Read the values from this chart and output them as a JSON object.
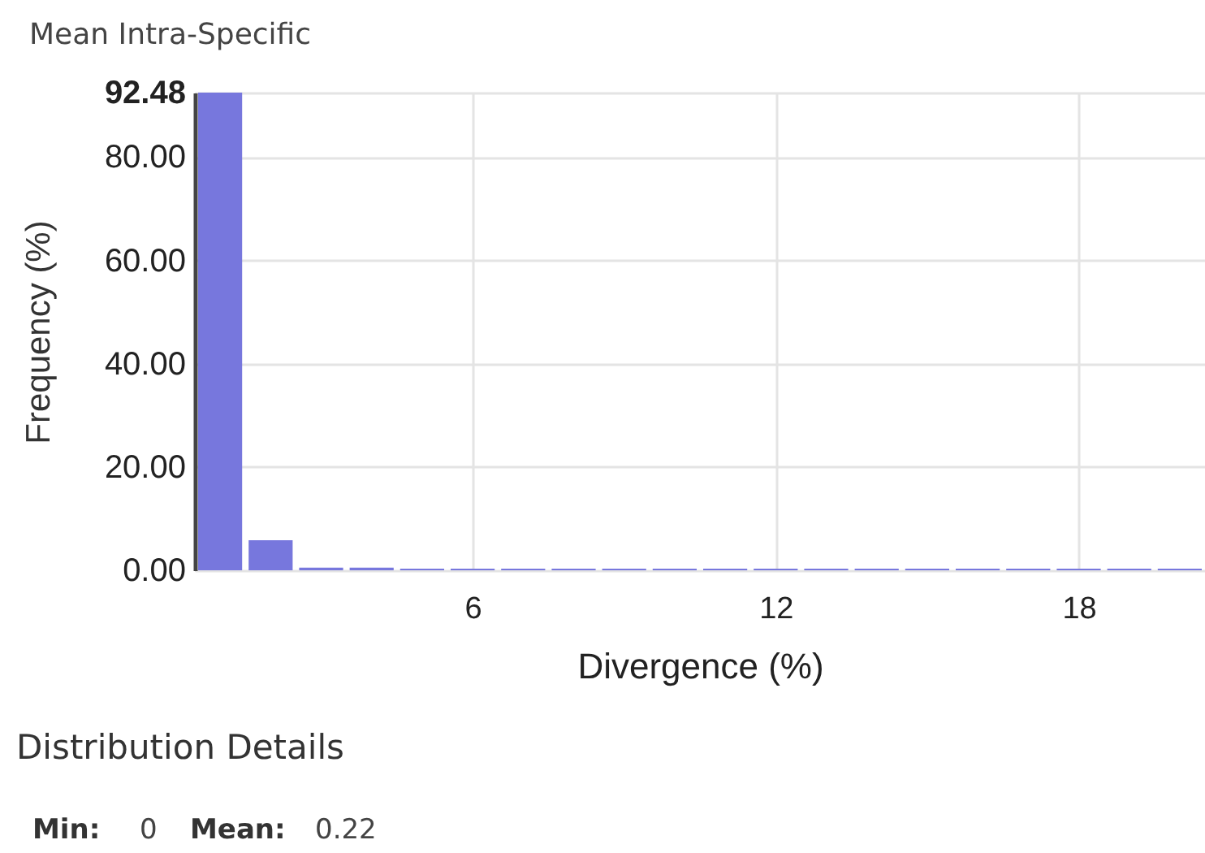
{
  "chart_data": {
    "type": "histogram",
    "title": "Mean Intra-Specific",
    "xlabel": "Divergence (%)",
    "ylabel": "Frequency (%)",
    "bins": [
      0.5,
      1.5,
      2.5,
      3.5,
      4.5,
      5.5,
      6.5,
      7.5,
      8.5,
      9.5,
      10.5,
      11.5,
      12.5,
      13.5,
      14.5,
      15.5,
      16.5,
      17.5,
      18.5,
      19.5,
      20.5
    ],
    "values": [
      92.48,
      5.8,
      0.5,
      0.5,
      0.3,
      0.3,
      0.3,
      0.3,
      0.3,
      0.3,
      0.3,
      0.3,
      0.3,
      0.3,
      0.3,
      0.3,
      0.3,
      0.3,
      0.3,
      0.3
    ],
    "color": "#7777dd",
    "xlim": [
      0.5,
      20.5
    ],
    "xticks": [
      6,
      12,
      18
    ],
    "ylim": [
      0,
      92.48
    ],
    "yticks": [
      {
        "value": 0,
        "label": "0.00"
      },
      {
        "value": 20,
        "label": "20.00"
      },
      {
        "value": 40,
        "label": "40.00"
      },
      {
        "value": 60,
        "label": "60.00"
      },
      {
        "value": 80,
        "label": "80.00"
      },
      {
        "value": 92.48,
        "label": "92.48"
      }
    ],
    "grid": true,
    "annotations": [
      "Distribution Details",
      "Min: 0",
      "Mean: 0.22"
    ]
  }
}
